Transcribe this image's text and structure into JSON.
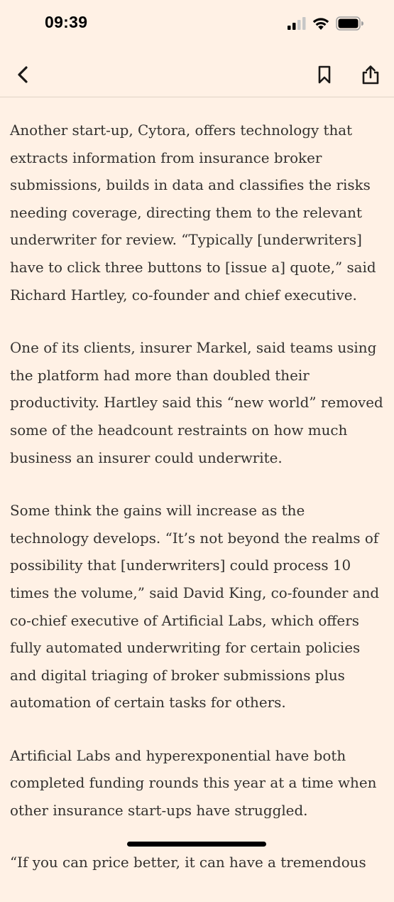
{
  "status_bar": {
    "time": "09:39",
    "icons": [
      "cellular-signal-icon",
      "wifi-icon",
      "battery-icon"
    ]
  },
  "nav": {
    "icons": [
      "back-chevron-icon",
      "bookmark-icon",
      "share-icon"
    ]
  },
  "article": {
    "paragraphs": [
      "Another start-up, Cytora, offers technology that extracts information from insurance broker submissions, builds in data and classifies the risks needing coverage, directing them to the relevant underwriter for review. “Typically [underwriters] have to click three buttons to [issue a] quote,” said Richard Hartley, co-founder and chief executive.",
      "One of its clients, insurer Markel, said teams using the platform had more than doubled their productivity. Hartley said this “new world” removed some of the headcount restraints on how much business an insurer could underwrite.",
      "Some think the gains will increase as the technology develops. “It’s not beyond the realms of possibility that [underwriters] could process 10 times the volume,” said David King, co-founder and co-chief executive of Artificial Labs, which offers fully automated underwriting for certain policies and digital triaging of broker submissions plus automation of certain tasks for others.",
      "Artificial Labs and hyperexponential have both completed funding rounds this year at a time when other insurance start-ups have struggled.",
      "“If you can price better, it can have a tremendous"
    ]
  },
  "colors": {
    "background": "#fff1e5",
    "text": "#33302e",
    "divider": "#e0d3c6"
  }
}
